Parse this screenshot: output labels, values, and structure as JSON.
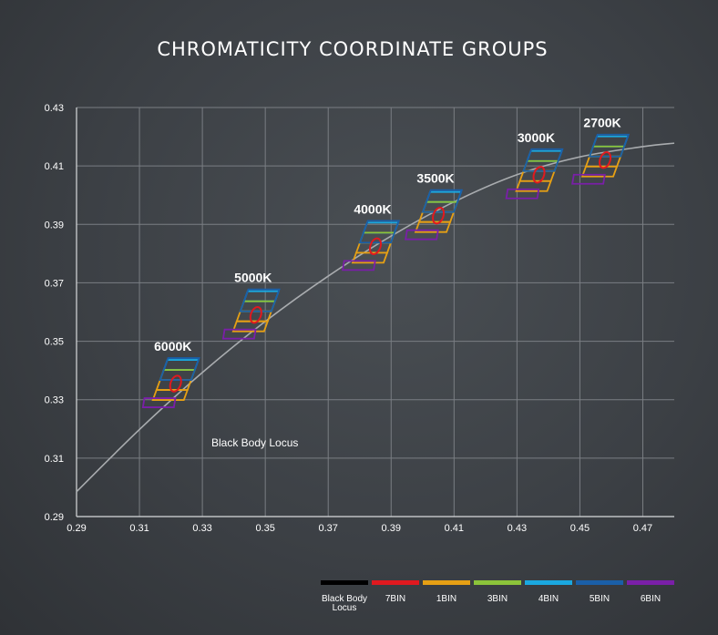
{
  "chart_data": {
    "type": "scatter",
    "title": "CHROMATICITY COORDINATE GROUPS",
    "xlabel": "",
    "ylabel": "",
    "xlim": [
      0.29,
      0.48
    ],
    "ylim": [
      0.29,
      0.43
    ],
    "grid": true,
    "x_ticks": [
      "0.29",
      "0.31",
      "0.33",
      "0.35",
      "0.37",
      "0.39",
      "0.41",
      "0.43",
      "0.45",
      "0.47"
    ],
    "y_ticks": [
      "0.43",
      "0.41",
      "0.39",
      "0.37",
      "0.35",
      "0.33",
      "0.31",
      "0.29"
    ],
    "black_body_locus": {
      "label": "Black Body Locus",
      "x": [
        0.29,
        0.31,
        0.33,
        0.35,
        0.37,
        0.39,
        0.41,
        0.43,
        0.45,
        0.47,
        0.48
      ],
      "y": [
        0.2985,
        0.3198,
        0.3393,
        0.3568,
        0.3723,
        0.386,
        0.3977,
        0.407,
        0.4131,
        0.4166,
        0.4178
      ]
    },
    "groups": [
      {
        "label": "6000K",
        "x": 0.3215,
        "y": 0.3355
      },
      {
        "label": "5000K",
        "x": 0.347,
        "y": 0.359
      },
      {
        "label": "4000K",
        "x": 0.385,
        "y": 0.3825
      },
      {
        "label": "3500K",
        "x": 0.405,
        "y": 0.393
      },
      {
        "label": "3000K",
        "x": 0.437,
        "y": 0.407
      },
      {
        "label": "2700K",
        "x": 0.458,
        "y": 0.412
      }
    ],
    "legend": {
      "placement": "bottom-right",
      "items": [
        {
          "label": "Black Body Locus",
          "color": "#000000"
        },
        {
          "label": "7BIN",
          "color": "#e0191f"
        },
        {
          "label": "1BIN",
          "color": "#e6a014"
        },
        {
          "label": "3BIN",
          "color": "#8cc43a"
        },
        {
          "label": "4BIN",
          "color": "#1aa8e0"
        },
        {
          "label": "5BIN",
          "color": "#1a5fa8"
        },
        {
          "label": "6BIN",
          "color": "#7a1fa8"
        }
      ]
    }
  }
}
